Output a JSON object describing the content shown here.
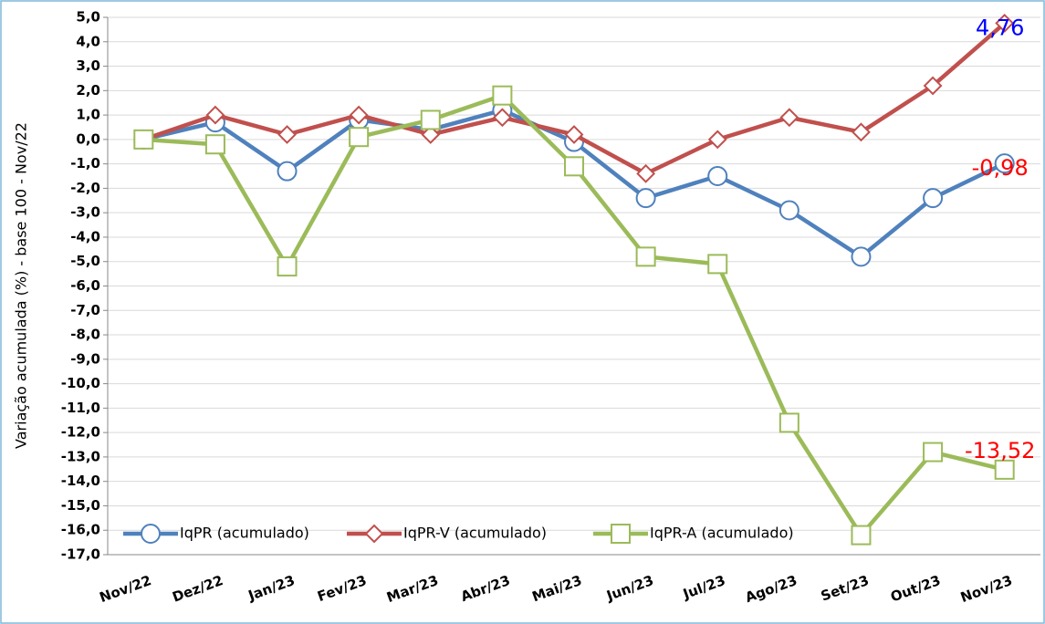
{
  "chart_data": {
    "type": "line",
    "y_axis_label": "Variação acumulada (%) - base 100 - Nov/22",
    "categories": [
      "Nov/22",
      "Dez/22",
      "Jan/23",
      "Fev/23",
      "Mar/23",
      "Abr/23",
      "Mai/23",
      "Jun/23",
      "Jul/23",
      "Ago/23",
      "Set/23",
      "Out/23",
      "Nov/23"
    ],
    "series": [
      {
        "name": "IqPR (acumulado)",
        "color": "#4f81bd",
        "marker": "circle",
        "label_color": "#ff0000",
        "values": [
          0,
          0.7,
          -1.3,
          0.8,
          0.4,
          1.2,
          -0.1,
          -2.4,
          -1.5,
          -2.9,
          -4.8,
          -2.4,
          -0.98
        ],
        "value_labels": [
          null,
          null,
          null,
          null,
          null,
          null,
          null,
          null,
          null,
          null,
          null,
          null,
          "-0,98"
        ]
      },
      {
        "name": "IqPR-V  (acumulado)",
        "color": "#c0504d",
        "marker": "diamond",
        "label_color": "#0000ff",
        "values": [
          0,
          1.0,
          0.2,
          1.0,
          0.2,
          0.9,
          0.2,
          -1.4,
          0.0,
          0.9,
          0.3,
          2.2,
          4.76
        ],
        "value_labels": [
          null,
          null,
          null,
          null,
          null,
          null,
          null,
          null,
          null,
          null,
          null,
          null,
          "4,76"
        ]
      },
      {
        "name": "IqPR-A  (acumulado)",
        "color": "#9bbb59",
        "marker": "square",
        "label_color": "#ff0000",
        "values": [
          0,
          -0.2,
          -5.2,
          0.1,
          0.8,
          1.8,
          -1.1,
          -4.8,
          -5.1,
          -11.6,
          -16.2,
          -12.8,
          -13.52
        ],
        "value_labels": [
          null,
          null,
          null,
          null,
          null,
          null,
          null,
          null,
          null,
          null,
          null,
          null,
          "-13,52"
        ]
      }
    ],
    "ylim": [
      -17,
      5
    ],
    "yticks": [
      {
        "value": 5,
        "label": "5,0"
      },
      {
        "value": 4,
        "label": "4,0"
      },
      {
        "value": 3,
        "label": "3,0"
      },
      {
        "value": 2,
        "label": "2,0"
      },
      {
        "value": 1,
        "label": "1,0"
      },
      {
        "value": 0,
        "label": "0,0"
      },
      {
        "value": -1,
        "label": "-1,0"
      },
      {
        "value": -2,
        "label": "-2,0"
      },
      {
        "value": -3,
        "label": "-3,0"
      },
      {
        "value": -4,
        "label": "-4,0"
      },
      {
        "value": -5,
        "label": "-5,0"
      },
      {
        "value": -6,
        "label": "-6,0"
      },
      {
        "value": -7,
        "label": "-7,0"
      },
      {
        "value": -8,
        "label": "-8,0"
      },
      {
        "value": -9,
        "label": "-9,0"
      },
      {
        "value": -10,
        "label": "-10,0"
      },
      {
        "value": -11,
        "label": "-11,0"
      },
      {
        "value": -12,
        "label": "-12,0"
      },
      {
        "value": -13,
        "label": "-13,0"
      },
      {
        "value": -14,
        "label": "-14,0"
      },
      {
        "value": -15,
        "label": "-15,0"
      },
      {
        "value": -16,
        "label": "-16,0"
      },
      {
        "value": -17,
        "label": "-17,0"
      }
    ],
    "grid": true,
    "legend": "bottom-left"
  }
}
